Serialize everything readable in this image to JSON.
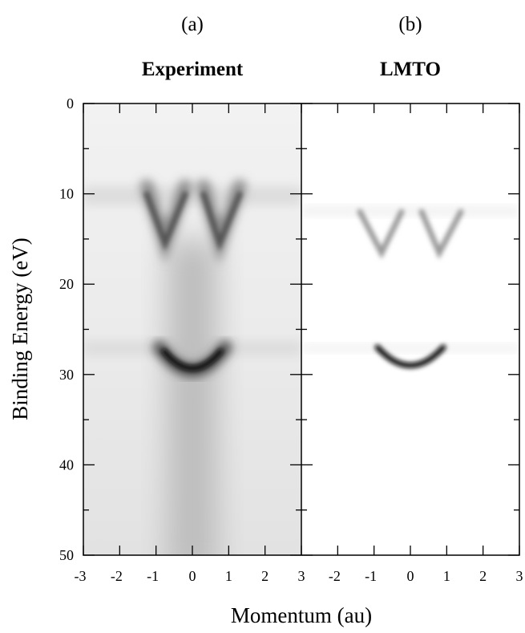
{
  "chart_data": [
    {
      "type": "heatmap",
      "panel_label": "(a)",
      "title": "Experiment",
      "xlim": [
        -3,
        3
      ],
      "xticks": [
        -3,
        -2,
        -1,
        0,
        1,
        2,
        3
      ],
      "ylim": [
        0,
        50
      ],
      "yticks": [
        0,
        10,
        20,
        30,
        40,
        50
      ],
      "y_minor_ticks": [
        5,
        15,
        25,
        35,
        45
      ],
      "y_inverted": true,
      "ylabel": "Binding Energy (eV)",
      "xlabel": "Momentum (au)"
    },
    {
      "type": "heatmap",
      "panel_label": "(b)",
      "title": "LMTO",
      "xlim": [
        -3,
        3
      ],
      "xticks": [
        -2,
        -1,
        0,
        1,
        2,
        3
      ]
    }
  ]
}
